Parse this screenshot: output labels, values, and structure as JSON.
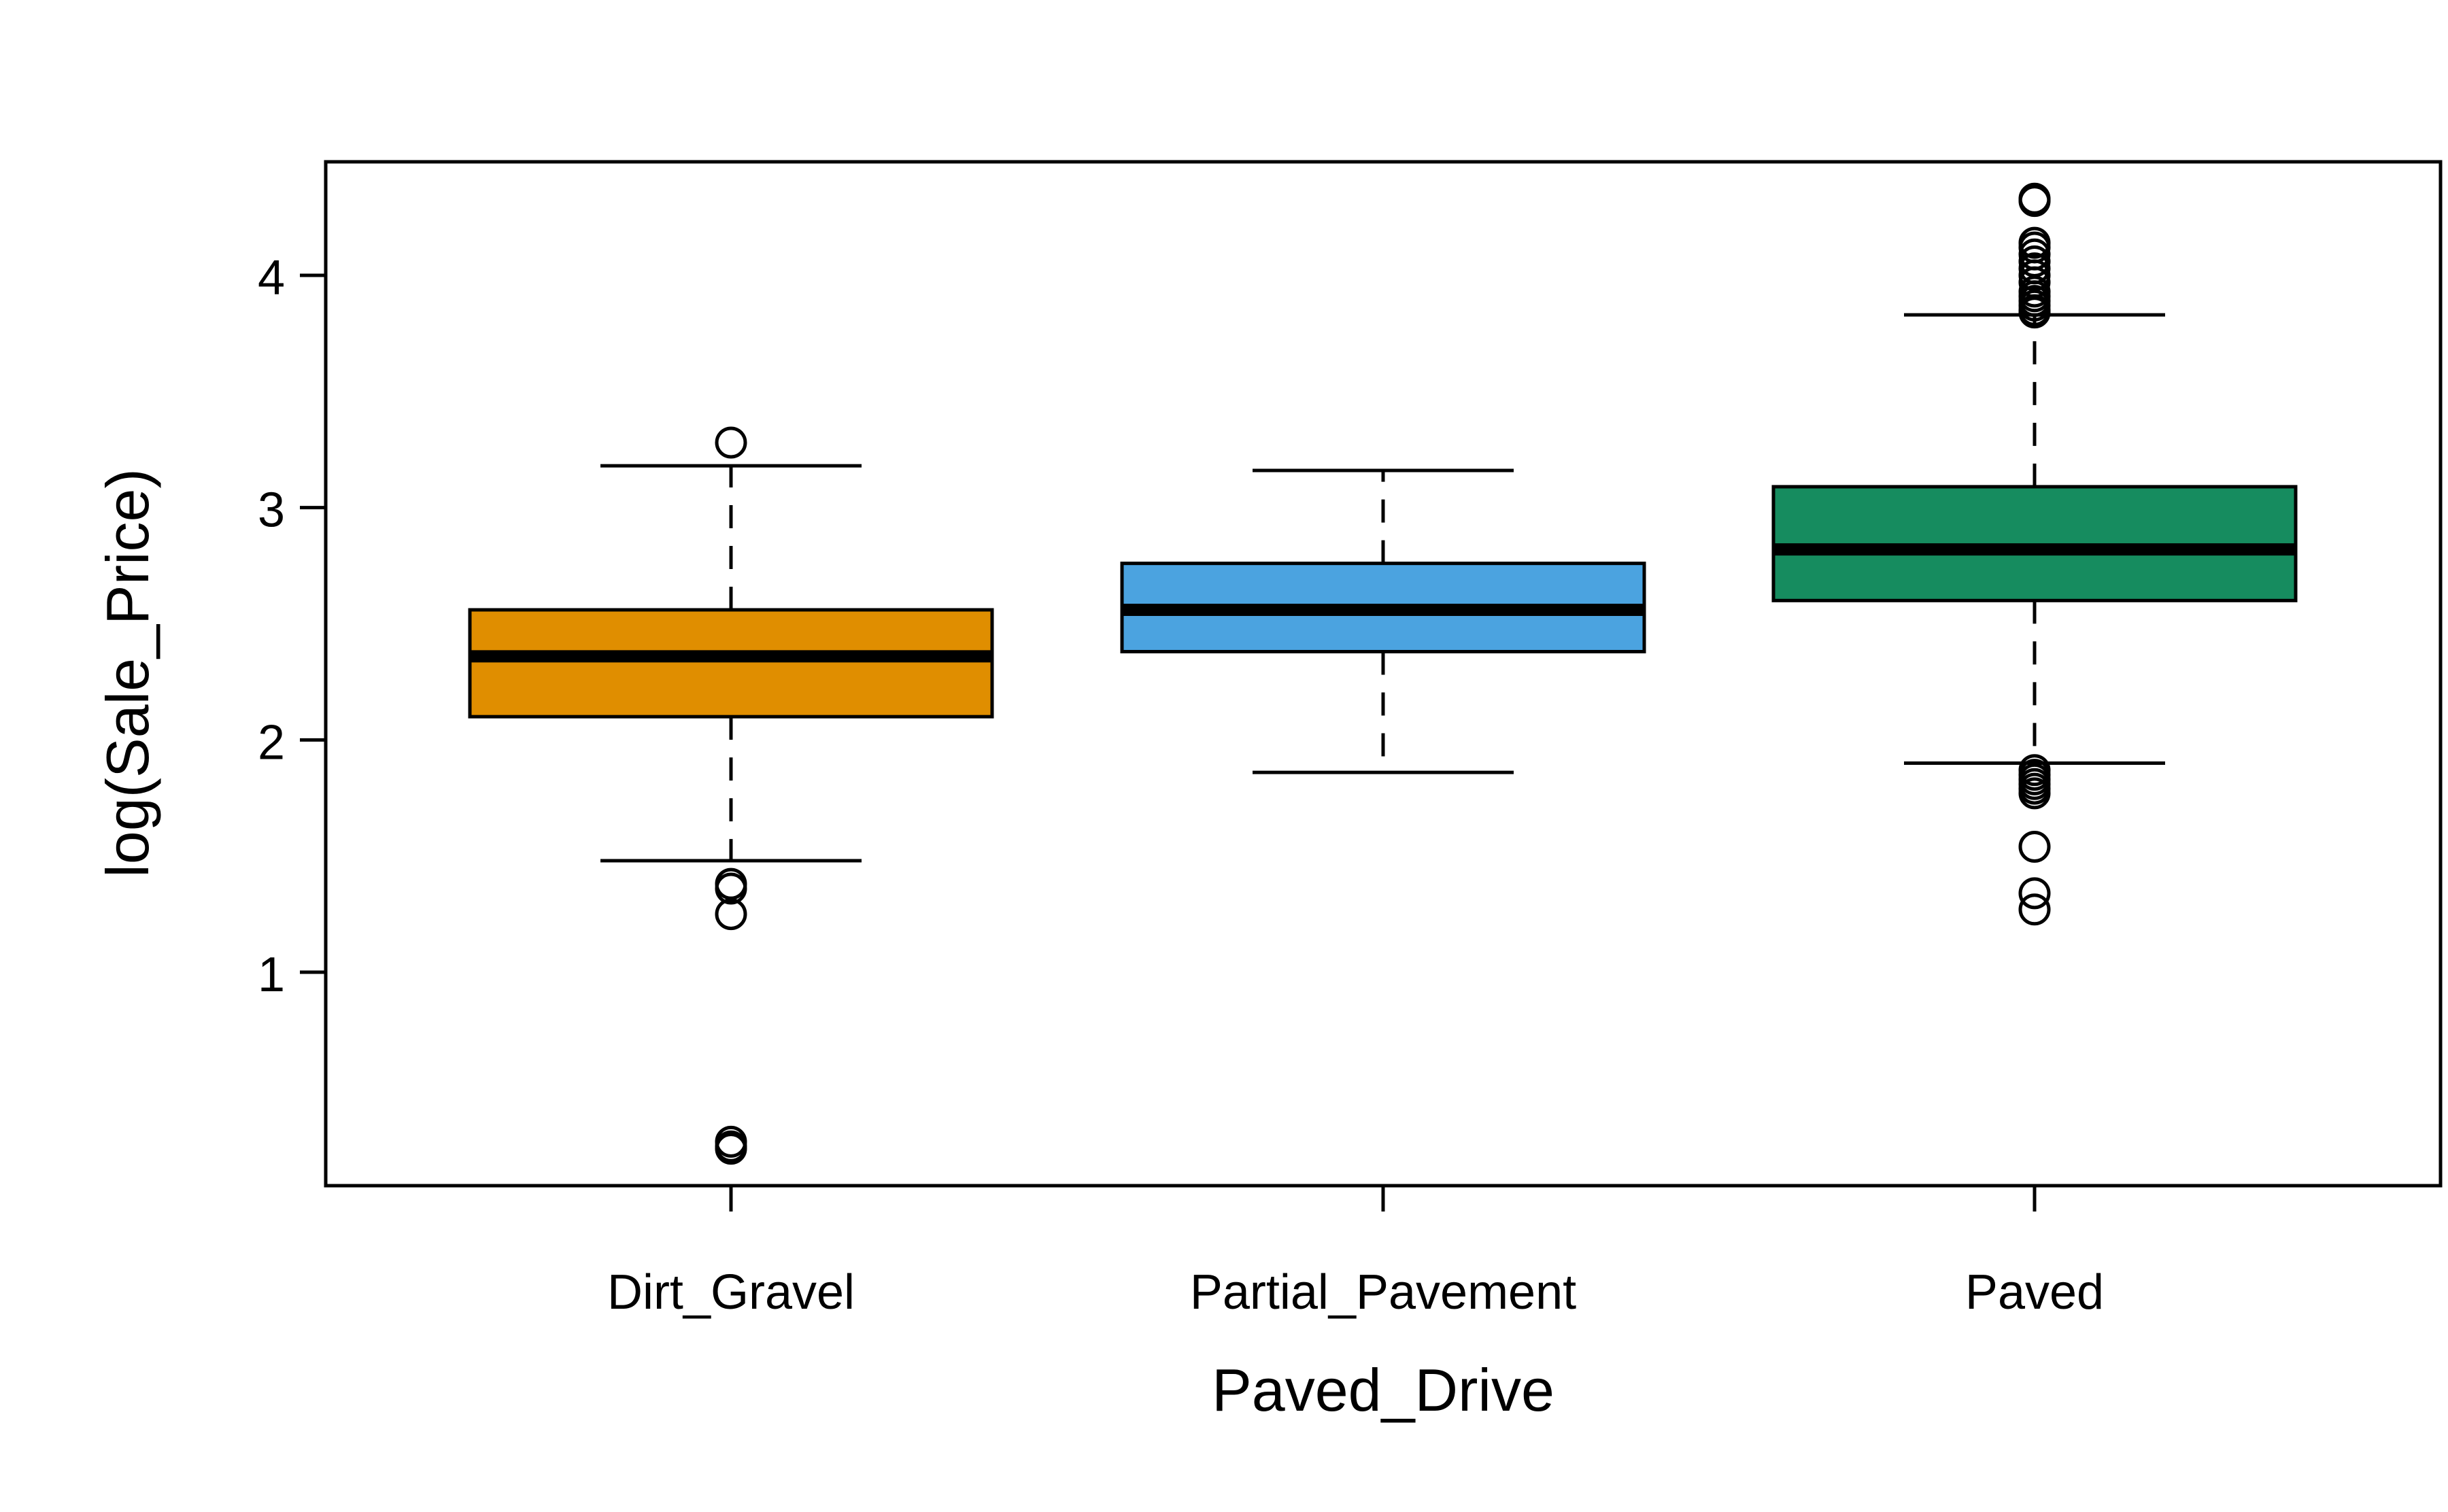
{
  "chart_data": {
    "type": "box",
    "title": "",
    "xlabel": "Paved_Drive",
    "ylabel": "log(Sale_Price)",
    "ylim": [
      0.1,
      4.5
    ],
    "yticks": [
      1,
      2,
      3,
      4
    ],
    "grid": false,
    "legend": "none",
    "categories": [
      "Dirt_Gravel",
      "Partial_Pavement",
      "Paved"
    ],
    "boxes": [
      {
        "category": "Dirt_Gravel",
        "color": "#E08E00",
        "whisker_low": 1.48,
        "q1": 2.1,
        "median": 2.36,
        "q3": 2.56,
        "whisker_high": 3.18,
        "outliers": [
          3.28,
          1.38,
          1.36,
          1.25,
          0.27,
          0.25,
          0.24
        ]
      },
      {
        "category": "Partial_Pavement",
        "color": "#4BA3E0",
        "whisker_low": 1.86,
        "q1": 2.38,
        "median": 2.56,
        "q3": 2.76,
        "whisker_high": 3.16,
        "outliers": []
      },
      {
        "category": "Paved",
        "color": "#168C5F",
        "whisker_low": 1.9,
        "q1": 2.6,
        "median": 2.82,
        "q3": 3.09,
        "whisker_high": 3.83,
        "outliers": [
          4.33,
          4.32,
          4.14,
          4.12,
          4.09,
          4.06,
          4.03,
          4.0,
          3.97,
          3.93,
          3.91,
          3.89,
          3.87,
          3.85,
          3.84,
          1.87,
          1.85,
          1.83,
          1.81,
          1.79,
          1.77,
          1.54,
          1.34,
          1.27
        ]
      }
    ]
  }
}
